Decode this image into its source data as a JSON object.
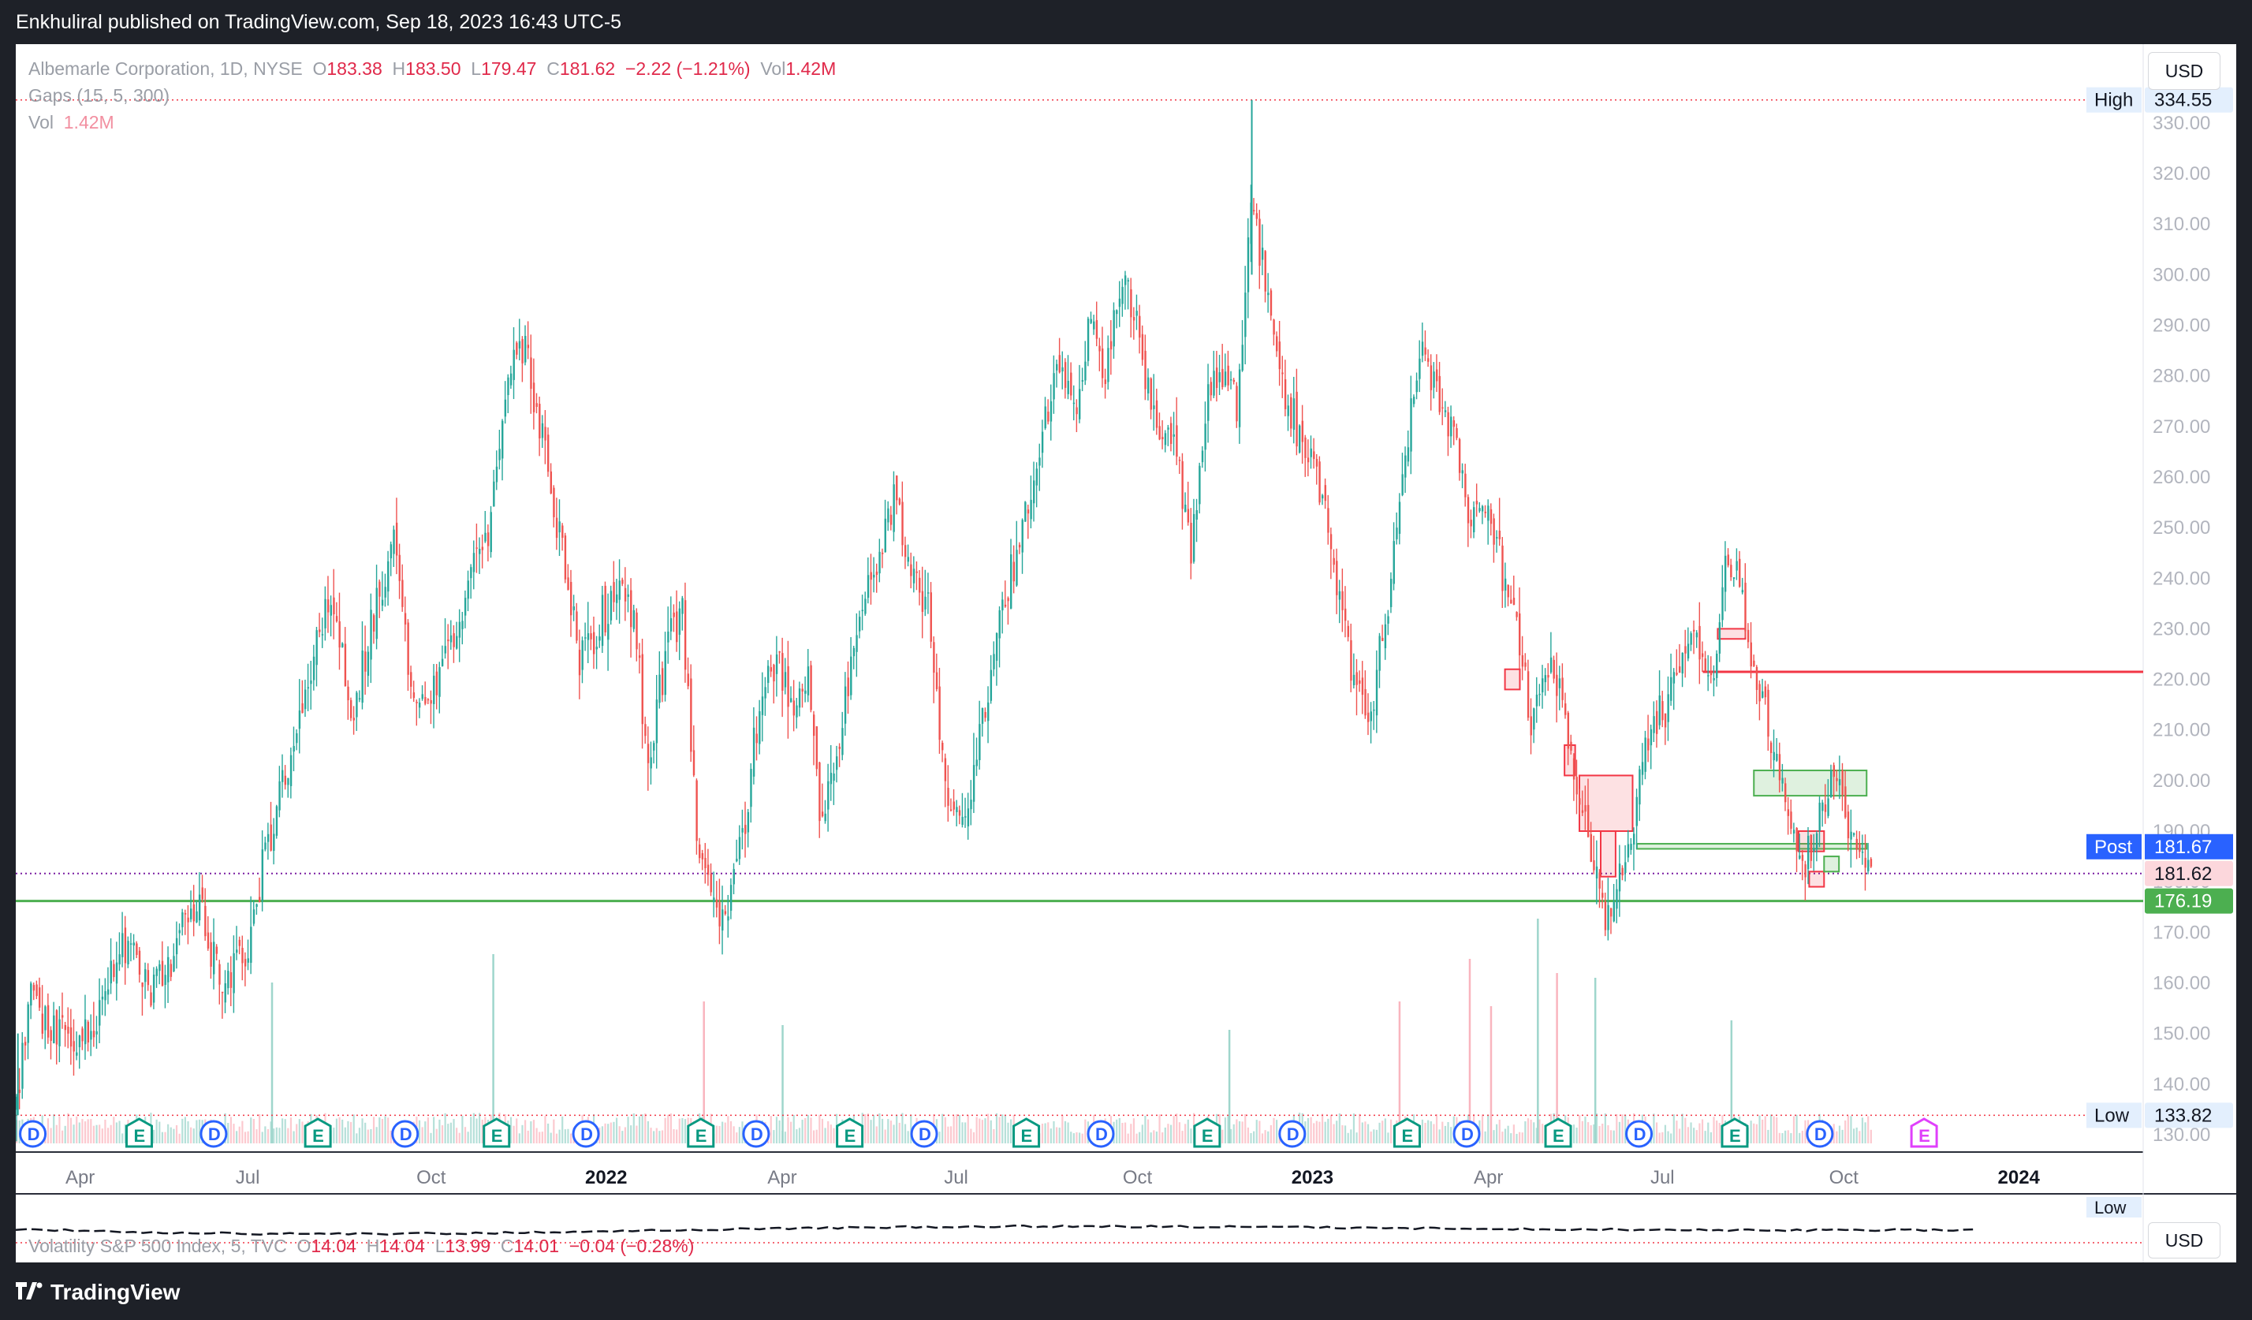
{
  "header": {
    "published": "Enkhuliral published on TradingView.com, Sep 18, 2023 16:43 UTC-5"
  },
  "legend": {
    "symbol": "Albemarle Corporation, 1D, NYSE",
    "o_label": "O",
    "o": "183.38",
    "h_label": "H",
    "h": "183.50",
    "l_label": "L",
    "l": "179.47",
    "c_label": "C",
    "c": "181.62",
    "change": "−2.22 (−1.21%)",
    "vol_label": "Vol",
    "vol": "1.42M",
    "gaps": "Gaps (15, 5, 300)",
    "vol2_label": "Vol",
    "vol2": "1.42M"
  },
  "currency": "USD",
  "vix": {
    "name": "Volatility S&P 500 Index, 5, TVC",
    "o_label": "O",
    "o": "14.04",
    "h_label": "H",
    "h": "14.04",
    "l_label": "L",
    "l": "13.99",
    "c_label": "C",
    "c": "14.01",
    "change": "−0.04 (−0.28%)",
    "currency": "USD",
    "low_label": "Low"
  },
  "footer": {
    "brand": "TradingView"
  },
  "colors": {
    "up": "#22ab94",
    "down": "#f23645",
    "up_candle": "#26a69a",
    "down_candle": "#ef5350",
    "green_line": "#4caf50",
    "red_line": "#f23645"
  },
  "chart_data": {
    "type": "candlestick",
    "title": "Albemarle Corporation, 1D, NYSE",
    "ylim": [
      125,
      337
    ],
    "y_ticks": [
      130,
      140,
      150,
      160,
      170,
      180,
      190,
      200,
      210,
      220,
      230,
      240,
      250,
      260,
      270,
      280,
      290,
      300,
      310,
      320,
      330
    ],
    "y_tick_labels": [
      "130.00",
      "140.00",
      "150.00",
      "160.00",
      "170.00",
      "180.00",
      "190.00",
      "200.00",
      "210.00",
      "220.00",
      "230.00",
      "240.00",
      "250.00",
      "260.00",
      "270.00",
      "280.00",
      "290.00",
      "300.00",
      "310.00",
      "320.00",
      "330.00"
    ],
    "x_ticks": [
      {
        "label": "Apr",
        "t": 0.03,
        "bold": false
      },
      {
        "label": "Jul",
        "t": 0.11,
        "bold": false
      },
      {
        "label": "Oct",
        "t": 0.195,
        "bold": false
      },
      {
        "label": "2022",
        "t": 0.278,
        "bold": true
      },
      {
        "label": "Apr",
        "t": 0.36,
        "bold": false
      },
      {
        "label": "Jul",
        "t": 0.443,
        "bold": false
      },
      {
        "label": "Oct",
        "t": 0.527,
        "bold": false
      },
      {
        "label": "2023",
        "t": 0.61,
        "bold": true
      },
      {
        "label": "Apr",
        "t": 0.692,
        "bold": false
      },
      {
        "label": "Jul",
        "t": 0.775,
        "bold": false
      },
      {
        "label": "Oct",
        "t": 0.859,
        "bold": false
      },
      {
        "label": "2024",
        "t": 0.942,
        "bold": true
      }
    ],
    "x_range_note": "Mar 2021 – Jan 2024 (daily candles)",
    "anchors": [
      [
        0.0,
        134
      ],
      [
        0.006,
        160
      ],
      [
        0.015,
        151
      ],
      [
        0.028,
        148
      ],
      [
        0.04,
        155
      ],
      [
        0.05,
        170
      ],
      [
        0.062,
        158
      ],
      [
        0.072,
        165
      ],
      [
        0.085,
        176
      ],
      [
        0.097,
        159
      ],
      [
        0.108,
        166
      ],
      [
        0.118,
        188
      ],
      [
        0.128,
        204
      ],
      [
        0.138,
        222
      ],
      [
        0.148,
        238
      ],
      [
        0.158,
        211
      ],
      [
        0.17,
        238
      ],
      [
        0.178,
        246
      ],
      [
        0.185,
        218
      ],
      [
        0.195,
        216
      ],
      [
        0.205,
        228
      ],
      [
        0.213,
        241
      ],
      [
        0.222,
        248
      ],
      [
        0.23,
        281
      ],
      [
        0.24,
        285
      ],
      [
        0.248,
        266
      ],
      [
        0.258,
        242
      ],
      [
        0.265,
        224
      ],
      [
        0.273,
        230
      ],
      [
        0.282,
        239
      ],
      [
        0.29,
        232
      ],
      [
        0.297,
        203
      ],
      [
        0.305,
        225
      ],
      [
        0.313,
        234
      ],
      [
        0.32,
        187
      ],
      [
        0.328,
        175
      ],
      [
        0.335,
        174
      ],
      [
        0.342,
        191
      ],
      [
        0.35,
        218
      ],
      [
        0.358,
        224
      ],
      [
        0.366,
        215
      ],
      [
        0.372,
        220
      ],
      [
        0.378,
        188
      ],
      [
        0.386,
        208
      ],
      [
        0.396,
        230
      ],
      [
        0.405,
        244
      ],
      [
        0.414,
        258
      ],
      [
        0.42,
        240
      ],
      [
        0.428,
        236
      ],
      [
        0.437,
        197
      ],
      [
        0.446,
        191
      ],
      [
        0.455,
        213
      ],
      [
        0.464,
        236
      ],
      [
        0.472,
        249
      ],
      [
        0.48,
        265
      ],
      [
        0.49,
        283
      ],
      [
        0.498,
        275
      ],
      [
        0.505,
        292
      ],
      [
        0.512,
        280
      ],
      [
        0.52,
        301
      ],
      [
        0.528,
        288
      ],
      [
        0.536,
        266
      ],
      [
        0.544,
        270
      ],
      [
        0.552,
        245
      ],
      [
        0.56,
        278
      ],
      [
        0.567,
        281
      ],
      [
        0.574,
        275
      ],
      [
        0.581,
        316
      ],
      [
        0.587,
        297
      ],
      [
        0.595,
        277
      ],
      [
        0.604,
        268
      ],
      [
        0.612,
        260
      ],
      [
        0.62,
        240
      ],
      [
        0.628,
        222
      ],
      [
        0.636,
        213
      ],
      [
        0.645,
        238
      ],
      [
        0.652,
        260
      ],
      [
        0.66,
        286
      ],
      [
        0.668,
        277
      ],
      [
        0.676,
        268
      ],
      [
        0.684,
        250
      ],
      [
        0.692,
        256
      ],
      [
        0.7,
        236
      ],
      [
        0.706,
        228
      ],
      [
        0.712,
        211
      ],
      [
        0.72,
        222
      ],
      [
        0.727,
        215
      ],
      [
        0.733,
        201
      ],
      [
        0.738,
        189
      ],
      [
        0.745,
        174
      ],
      [
        0.752,
        177
      ],
      [
        0.76,
        193
      ],
      [
        0.767,
        210
      ],
      [
        0.775,
        213
      ],
      [
        0.782,
        226
      ],
      [
        0.79,
        229
      ],
      [
        0.797,
        219
      ],
      [
        0.803,
        243
      ],
      [
        0.81,
        240
      ],
      [
        0.815,
        221
      ],
      [
        0.822,
        214
      ],
      [
        0.83,
        200
      ],
      [
        0.837,
        183
      ],
      [
        0.843,
        186
      ],
      [
        0.85,
        197
      ],
      [
        0.856,
        201
      ],
      [
        0.862,
        187
      ],
      [
        0.868,
        184
      ],
      [
        0.873,
        181.62
      ]
    ],
    "x_end_fraction": 0.873,
    "high": {
      "label": "High",
      "value": "334.55",
      "y": 334.55
    },
    "low": {
      "label": "Low",
      "value": "133.82",
      "y": 133.82
    },
    "last_price": {
      "value": "181.62",
      "y": 181.62
    },
    "post": {
      "label": "Post",
      "value": "181.67"
    },
    "support": {
      "value": "176.19",
      "y": 176.19
    },
    "resistance": {
      "y": 221.5,
      "x_start": 0.793
    },
    "gaps": [
      {
        "x0": 0.735,
        "x1": 0.76,
        "y0": 190,
        "y1": 201,
        "type": "down"
      },
      {
        "x0": 0.745,
        "x1": 0.752,
        "y0": 181,
        "y1": 190,
        "type": "down"
      },
      {
        "x0": 0.7,
        "x1": 0.707,
        "y0": 218,
        "y1": 222,
        "type": "down"
      },
      {
        "x0": 0.728,
        "x1": 0.733,
        "y0": 201,
        "y1": 207,
        "type": "down"
      },
      {
        "x0": 0.817,
        "x1": 0.87,
        "y0": 197,
        "y1": 202,
        "type": "up"
      },
      {
        "x0": 0.762,
        "x1": 0.87,
        "y0": 186.5,
        "y1": 187.5,
        "type": "up"
      },
      {
        "x0": 0.8,
        "x1": 0.813,
        "y0": 228,
        "y1": 230,
        "type": "down"
      },
      {
        "x0": 0.843,
        "x1": 0.85,
        "y0": 179,
        "y1": 182,
        "type": "down"
      },
      {
        "x0": 0.85,
        "x1": 0.857,
        "y0": 182,
        "y1": 185,
        "type": "up"
      },
      {
        "x0": 0.838,
        "x1": 0.85,
        "y0": 186,
        "y1": 190,
        "type": "down"
      }
    ],
    "events": [
      {
        "t": 0.008,
        "label": "D",
        "kind": "dividend"
      },
      {
        "t": 0.058,
        "label": "E",
        "kind": "earnings"
      },
      {
        "t": 0.093,
        "label": "D",
        "kind": "dividend"
      },
      {
        "t": 0.142,
        "label": "E",
        "kind": "earnings"
      },
      {
        "t": 0.183,
        "label": "D",
        "kind": "dividend"
      },
      {
        "t": 0.226,
        "label": "E",
        "kind": "earnings"
      },
      {
        "t": 0.268,
        "label": "D",
        "kind": "dividend"
      },
      {
        "t": 0.322,
        "label": "E",
        "kind": "earnings"
      },
      {
        "t": 0.348,
        "label": "D",
        "kind": "dividend"
      },
      {
        "t": 0.392,
        "label": "E",
        "kind": "earnings"
      },
      {
        "t": 0.427,
        "label": "D",
        "kind": "dividend"
      },
      {
        "t": 0.475,
        "label": "E",
        "kind": "earnings"
      },
      {
        "t": 0.51,
        "label": "D",
        "kind": "dividend"
      },
      {
        "t": 0.56,
        "label": "E",
        "kind": "earnings"
      },
      {
        "t": 0.6,
        "label": "D",
        "kind": "dividend"
      },
      {
        "t": 0.654,
        "label": "E",
        "kind": "earnings"
      },
      {
        "t": 0.682,
        "label": "D",
        "kind": "dividend"
      },
      {
        "t": 0.725,
        "label": "E",
        "kind": "earnings"
      },
      {
        "t": 0.763,
        "label": "D",
        "kind": "dividend"
      },
      {
        "t": 0.808,
        "label": "E",
        "kind": "earnings"
      },
      {
        "t": 0.848,
        "label": "D",
        "kind": "dividend"
      },
      {
        "t": 0.897,
        "label": "E",
        "kind": "earnings-future"
      }
    ],
    "volume_spikes": [
      {
        "t": 0.12,
        "v": 0.68,
        "up": true
      },
      {
        "t": 0.224,
        "v": 0.8,
        "up": true
      },
      {
        "t": 0.323,
        "v": 0.6,
        "up": false
      },
      {
        "t": 0.36,
        "v": 0.5,
        "up": true
      },
      {
        "t": 0.57,
        "v": 0.48,
        "up": true
      },
      {
        "t": 0.65,
        "v": 0.6,
        "up": false
      },
      {
        "t": 0.693,
        "v": 0.58,
        "up": false
      },
      {
        "t": 0.715,
        "v": 0.95,
        "up": true
      },
      {
        "t": 0.724,
        "v": 0.72,
        "up": false
      },
      {
        "t": 0.742,
        "v": 0.7,
        "up": true
      },
      {
        "t": 0.683,
        "v": 0.78,
        "up": false
      },
      {
        "t": 0.806,
        "v": 0.52,
        "up": true
      }
    ]
  }
}
